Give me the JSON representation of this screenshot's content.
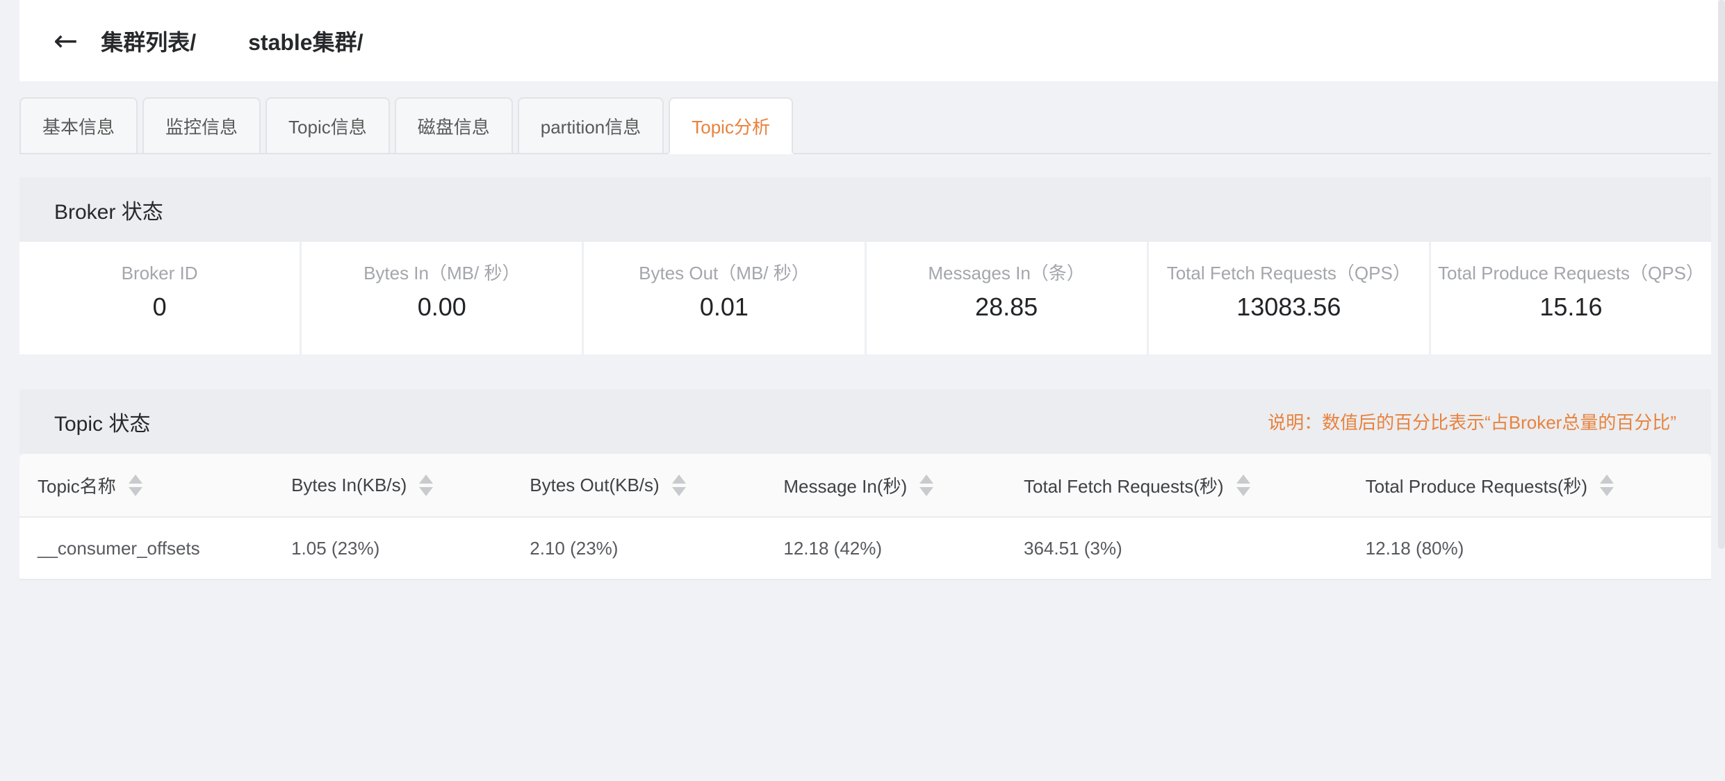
{
  "page": {
    "bg_color": "#f1f2f6",
    "accent_color": "#e8823d"
  },
  "header": {
    "back_icon": "←",
    "breadcrumb_root": "集群列表/",
    "breadcrumb_current": "stable集群/"
  },
  "tabs": [
    {
      "label": "基本信息",
      "active": false
    },
    {
      "label": "监控信息",
      "active": false
    },
    {
      "label": "Topic信息",
      "active": false
    },
    {
      "label": "磁盘信息",
      "active": false
    },
    {
      "label": "partition信息",
      "active": false
    },
    {
      "label": "Topic分析",
      "active": true
    }
  ],
  "broker_status": {
    "title": "Broker 状态",
    "metrics": [
      {
        "label": "Broker ID",
        "value": "0"
      },
      {
        "label": "Bytes In（MB/ 秒）",
        "value": "0.00"
      },
      {
        "label": "Bytes Out（MB/ 秒）",
        "value": "0.01"
      },
      {
        "label": "Messages In（条）",
        "value": "28.85"
      },
      {
        "label": "Total Fetch Requests（QPS）",
        "value": "13083.56"
      },
      {
        "label": "Total Produce Requests（QPS）",
        "value": "15.16"
      }
    ]
  },
  "topic_status": {
    "title": "Topic 状态",
    "note": "说明：数值后的百分比表示“占Broker总量的百分比”",
    "table": {
      "columns": [
        "Topic名称",
        "Bytes In(KB/s)",
        "Bytes Out(KB/s)",
        "Message In(秒)",
        "Total Fetch Requests(秒)",
        "Total Produce Requests(秒)"
      ],
      "rows": [
        [
          "__consumer_offsets",
          "1.05 (23%)",
          "2.10 (23%)",
          "12.18 (42%)",
          "364.51 (3%)",
          "12.18 (80%)"
        ]
      ]
    }
  }
}
